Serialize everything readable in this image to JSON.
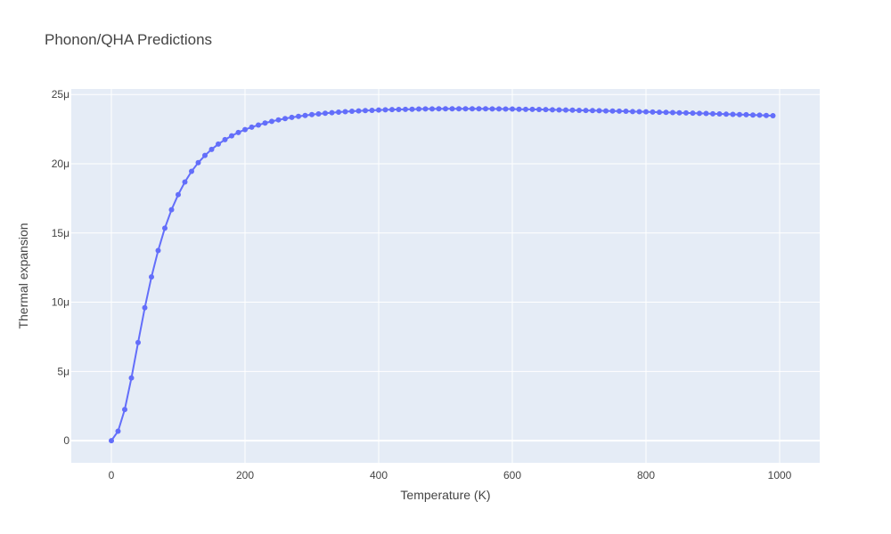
{
  "chart_data": {
    "type": "line",
    "title": "Phonon/QHA Predictions",
    "xlabel": "Temperature (K)",
    "ylabel": "Thermal expansion",
    "xlim": [
      -60,
      1060
    ],
    "ylim": [
      -1.6e-06,
      2.54e-05
    ],
    "x_ticks": [
      0,
      200,
      400,
      600,
      800,
      1000
    ],
    "x_tick_labels": [
      "0",
      "200",
      "400",
      "600",
      "800",
      "1000"
    ],
    "y_ticks": [
      0,
      5e-06,
      1e-05,
      1.5e-05,
      2e-05,
      2.5e-05
    ],
    "y_tick_labels": [
      "0",
      "5μ",
      "10μ",
      "15μ",
      "20μ",
      "25μ"
    ],
    "grid": true,
    "legend": "none",
    "colors": {
      "series": "#636efa",
      "plot_bg": "#e5ecf6",
      "grid": "#ffffff"
    },
    "series": [
      {
        "mode": "lines+markers",
        "x": [
          0,
          10,
          20,
          30,
          40,
          50,
          60,
          70,
          80,
          90,
          100,
          110,
          120,
          130,
          140,
          150,
          160,
          170,
          180,
          190,
          200,
          210,
          220,
          230,
          240,
          250,
          260,
          270,
          280,
          290,
          300,
          310,
          320,
          330,
          340,
          350,
          360,
          370,
          380,
          390,
          400,
          410,
          420,
          430,
          440,
          450,
          460,
          470,
          480,
          490,
          500,
          510,
          520,
          530,
          540,
          550,
          560,
          570,
          580,
          590,
          600,
          610,
          620,
          630,
          640,
          650,
          660,
          670,
          680,
          690,
          700,
          710,
          720,
          730,
          740,
          750,
          760,
          770,
          780,
          790,
          800,
          810,
          820,
          830,
          840,
          850,
          860,
          870,
          880,
          890,
          900,
          910,
          920,
          930,
          940,
          950,
          960,
          970,
          980,
          990
        ],
        "y": [
          0,
          6.8e-07,
          2.25e-06,
          4.53e-06,
          7.09e-06,
          9.6e-06,
          1.183e-05,
          1.373e-05,
          1.535e-05,
          1.668e-05,
          1.777e-05,
          1.868e-05,
          1.945e-05,
          2.008e-05,
          2.06e-05,
          2.104e-05,
          2.142e-05,
          2.174e-05,
          2.202e-05,
          2.226e-05,
          2.247e-05,
          2.264e-05,
          2.28e-05,
          2.294e-05,
          2.306e-05,
          2.317e-05,
          2.326e-05,
          2.335e-05,
          2.342e-05,
          2.349e-05,
          2.355e-05,
          2.36e-05,
          2.365e-05,
          2.369e-05,
          2.373e-05,
          2.376e-05,
          2.379e-05,
          2.382e-05,
          2.384e-05,
          2.386e-05,
          2.388e-05,
          2.39e-05,
          2.391e-05,
          2.392e-05,
          2.393e-05,
          2.394e-05,
          2.395e-05,
          2.396e-05,
          2.396e-05,
          2.397e-05,
          2.397e-05,
          2.397e-05,
          2.397e-05,
          2.397e-05,
          2.397e-05,
          2.397e-05,
          2.397e-05,
          2.396e-05,
          2.396e-05,
          2.395e-05,
          2.395e-05,
          2.394e-05,
          2.393e-05,
          2.393e-05,
          2.392e-05,
          2.391e-05,
          2.39e-05,
          2.389e-05,
          2.388e-05,
          2.387e-05,
          2.386e-05,
          2.385e-05,
          2.384e-05,
          2.383e-05,
          2.382e-05,
          2.381e-05,
          2.38e-05,
          2.379e-05,
          2.377e-05,
          2.376e-05,
          2.375e-05,
          2.374e-05,
          2.372e-05,
          2.371e-05,
          2.37e-05,
          2.368e-05,
          2.367e-05,
          2.366e-05,
          2.364e-05,
          2.363e-05,
          2.361e-05,
          2.36e-05,
          2.358e-05,
          2.357e-05,
          2.355e-05,
          2.354e-05,
          2.352e-05,
          2.351e-05,
          2.349e-05,
          2.347e-05
        ]
      }
    ]
  }
}
